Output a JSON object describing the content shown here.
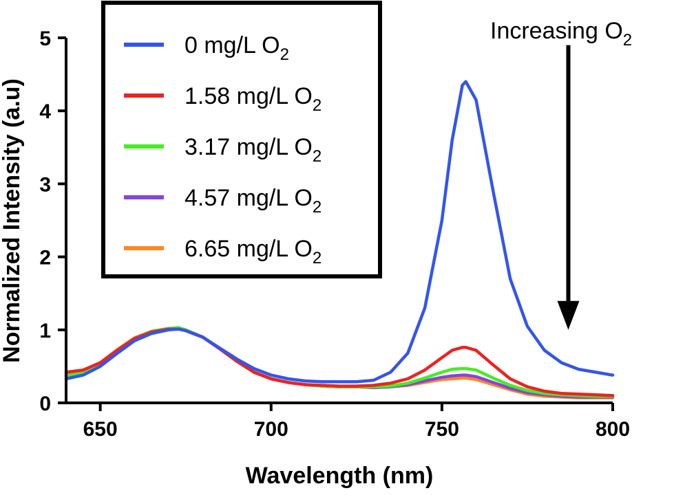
{
  "chart_data": {
    "type": "line",
    "xlabel": "Wavelength (nm)",
    "ylabel": "Normalized Intensity (a.u)",
    "xlim": [
      640,
      800
    ],
    "ylim": [
      0,
      5
    ],
    "xticks": [
      650,
      700,
      750,
      800
    ],
    "yticks": [
      0,
      1,
      2,
      3,
      4,
      5
    ],
    "grid": false,
    "legend_position": "top-left",
    "x": [
      640,
      645,
      650,
      655,
      660,
      665,
      670,
      673,
      675,
      680,
      685,
      690,
      695,
      700,
      705,
      710,
      715,
      720,
      725,
      730,
      735,
      740,
      745,
      750,
      753,
      756,
      757,
      760,
      765,
      770,
      775,
      780,
      785,
      790,
      795,
      800
    ],
    "series": [
      {
        "name": "0 mg/L O2",
        "label_main": "0 mg/L O",
        "label_sub": "2",
        "color": "#3355ee",
        "values": [
          0.33,
          0.38,
          0.5,
          0.68,
          0.85,
          0.95,
          1.0,
          1.01,
          0.99,
          0.9,
          0.75,
          0.6,
          0.47,
          0.38,
          0.33,
          0.3,
          0.29,
          0.29,
          0.29,
          0.31,
          0.42,
          0.68,
          1.3,
          2.5,
          3.6,
          4.35,
          4.4,
          4.15,
          2.9,
          1.7,
          1.05,
          0.72,
          0.55,
          0.46,
          0.42,
          0.38
        ]
      },
      {
        "name": "1.58 mg/L O2",
        "label_main": "1.58 mg/L O",
        "label_sub": "2",
        "color": "#ee2222",
        "values": [
          0.42,
          0.45,
          0.55,
          0.72,
          0.88,
          0.97,
          1.01,
          1.01,
          0.99,
          0.9,
          0.74,
          0.57,
          0.42,
          0.33,
          0.28,
          0.25,
          0.24,
          0.23,
          0.23,
          0.24,
          0.27,
          0.33,
          0.45,
          0.62,
          0.72,
          0.76,
          0.76,
          0.72,
          0.52,
          0.33,
          0.22,
          0.16,
          0.13,
          0.12,
          0.11,
          0.1
        ]
      },
      {
        "name": "3.17 mg/L O2",
        "label_main": "3.17 mg/L O",
        "label_sub": "2",
        "color": "#44ee22",
        "values": [
          0.37,
          0.41,
          0.53,
          0.72,
          0.88,
          0.98,
          1.02,
          1.03,
          1.0,
          0.9,
          0.74,
          0.57,
          0.42,
          0.33,
          0.28,
          0.25,
          0.23,
          0.22,
          0.22,
          0.22,
          0.23,
          0.27,
          0.34,
          0.42,
          0.46,
          0.47,
          0.47,
          0.45,
          0.34,
          0.24,
          0.17,
          0.13,
          0.11,
          0.1,
          0.09,
          0.09
        ]
      },
      {
        "name": "4.57 mg/L O2",
        "label_main": "4.57 mg/L O",
        "label_sub": "2",
        "color": "#8844dd",
        "values": [
          0.37,
          0.41,
          0.53,
          0.71,
          0.87,
          0.97,
          1.01,
          1.02,
          0.99,
          0.9,
          0.74,
          0.57,
          0.42,
          0.33,
          0.28,
          0.25,
          0.23,
          0.22,
          0.22,
          0.21,
          0.22,
          0.25,
          0.3,
          0.35,
          0.37,
          0.38,
          0.38,
          0.36,
          0.28,
          0.2,
          0.14,
          0.11,
          0.09,
          0.08,
          0.08,
          0.08
        ]
      },
      {
        "name": "6.65 mg/L O2",
        "label_main": "6.65 mg/L O",
        "label_sub": "2",
        "color": "#ff8822",
        "values": [
          0.4,
          0.44,
          0.55,
          0.73,
          0.89,
          0.98,
          1.02,
          1.02,
          1.0,
          0.9,
          0.74,
          0.57,
          0.42,
          0.33,
          0.28,
          0.25,
          0.23,
          0.22,
          0.22,
          0.21,
          0.22,
          0.24,
          0.28,
          0.32,
          0.33,
          0.34,
          0.34,
          0.32,
          0.25,
          0.18,
          0.12,
          0.09,
          0.08,
          0.07,
          0.07,
          0.07
        ]
      }
    ],
    "annotation": {
      "text_main": "Increasing O",
      "text_sub": "2",
      "arrow_x": 787,
      "arrow_y_start": 4.9,
      "arrow_y_end": 1.0,
      "color": "#000000"
    }
  }
}
